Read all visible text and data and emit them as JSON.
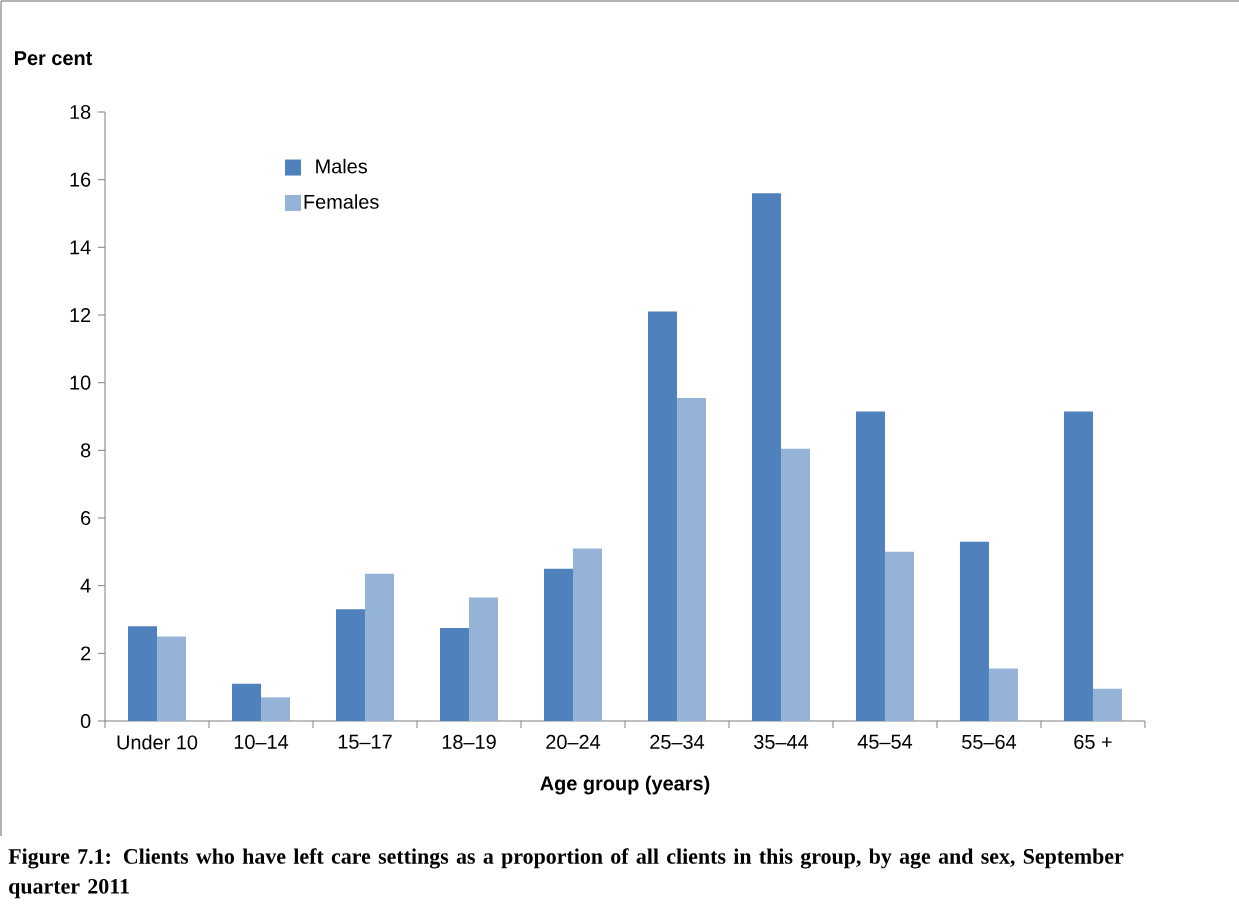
{
  "chart_data": {
    "type": "bar",
    "xlabel": "Age group (years)",
    "ylabel": "Per cent",
    "annotations": [
      "Figure 7.1: Clients who have left care settings as a proportion of all clients in this group, by age and sex, September quarter 2011"
    ],
    "categories": [
      "Under 10",
      "10–14",
      "15–17",
      "18–19",
      "20–24",
      "25–34",
      "35–44",
      "45–54",
      "55–64",
      "65 +"
    ],
    "series": [
      {
        "name": "Males",
        "color": "#4f81bd",
        "values": [
          2.8,
          1.1,
          3.3,
          2.75,
          4.5,
          12.1,
          15.6,
          9.15,
          5.3,
          9.15
        ]
      },
      {
        "name": "Females",
        "color": "#95b3d7",
        "values": [
          2.5,
          0.7,
          4.35,
          3.65,
          5.1,
          9.55,
          8.05,
          5.0,
          1.55,
          0.95
        ]
      }
    ],
    "ylim": [
      0,
      18
    ],
    "yticks": [
      0,
      2,
      4,
      6,
      8,
      10,
      12,
      14,
      16,
      18
    ],
    "legend": "top left",
    "grid": false
  }
}
